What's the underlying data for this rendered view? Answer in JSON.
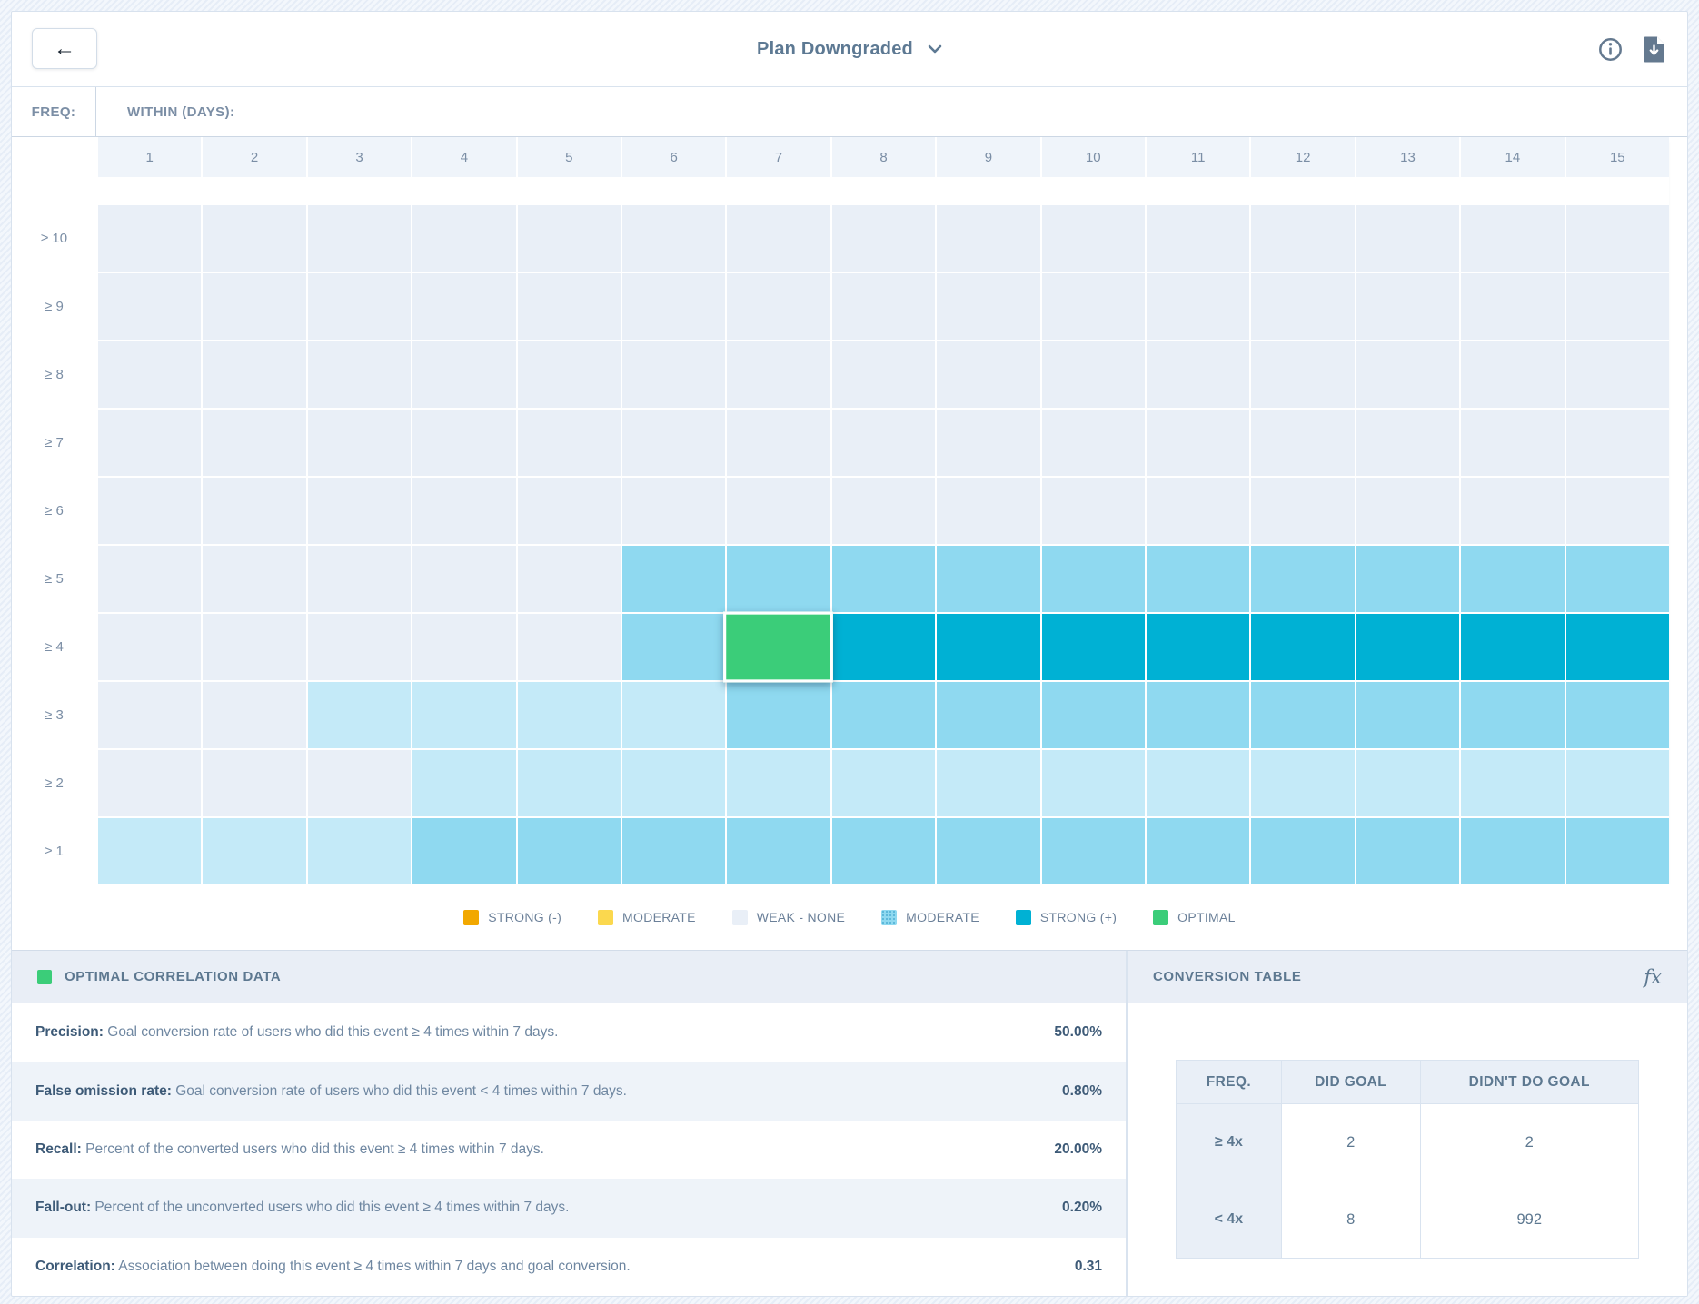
{
  "header": {
    "title": "Plan Downgraded",
    "back_label": "←"
  },
  "matrix": {
    "freq_label": "FREQ:",
    "within_label": "WITHIN (DAYS):",
    "columns": [
      "1",
      "2",
      "3",
      "4",
      "5",
      "6",
      "7",
      "8",
      "9",
      "10",
      "11",
      "12",
      "13",
      "14",
      "15"
    ],
    "cell_types": {
      "w": "weak-none",
      "l": "light-moderate",
      "m": "moderate",
      "s": "strong-positive",
      "o": "optimal"
    },
    "rows": [
      {
        "label": "≥ 10",
        "cells": [
          "w",
          "w",
          "w",
          "w",
          "w",
          "w",
          "w",
          "w",
          "w",
          "w",
          "w",
          "w",
          "w",
          "w",
          "w"
        ]
      },
      {
        "label": "≥ 9",
        "cells": [
          "w",
          "w",
          "w",
          "w",
          "w",
          "w",
          "w",
          "w",
          "w",
          "w",
          "w",
          "w",
          "w",
          "w",
          "w"
        ]
      },
      {
        "label": "≥ 8",
        "cells": [
          "w",
          "w",
          "w",
          "w",
          "w",
          "w",
          "w",
          "w",
          "w",
          "w",
          "w",
          "w",
          "w",
          "w",
          "w"
        ]
      },
      {
        "label": "≥ 7",
        "cells": [
          "w",
          "w",
          "w",
          "w",
          "w",
          "w",
          "w",
          "w",
          "w",
          "w",
          "w",
          "w",
          "w",
          "w",
          "w"
        ]
      },
      {
        "label": "≥ 6",
        "cells": [
          "w",
          "w",
          "w",
          "w",
          "w",
          "w",
          "w",
          "w",
          "w",
          "w",
          "w",
          "w",
          "w",
          "w",
          "w"
        ]
      },
      {
        "label": "≥ 5",
        "cells": [
          "w",
          "w",
          "w",
          "w",
          "w",
          "m",
          "m",
          "m",
          "m",
          "m",
          "m",
          "m",
          "m",
          "m",
          "m"
        ]
      },
      {
        "label": "≥ 4",
        "cells": [
          "w",
          "w",
          "w",
          "w",
          "w",
          "m",
          "o",
          "s",
          "s",
          "s",
          "s",
          "s",
          "s",
          "s",
          "s"
        ]
      },
      {
        "label": "≥ 3",
        "cells": [
          "w",
          "w",
          "l",
          "l",
          "l",
          "l",
          "m",
          "m",
          "m",
          "m",
          "m",
          "m",
          "m",
          "m",
          "m"
        ]
      },
      {
        "label": "≥ 2",
        "cells": [
          "w",
          "w",
          "w",
          "l",
          "l",
          "l",
          "l",
          "l",
          "l",
          "l",
          "l",
          "l",
          "l",
          "l",
          "l"
        ]
      },
      {
        "label": "≥ 1",
        "cells": [
          "l",
          "l",
          "l",
          "m",
          "m",
          "m",
          "m",
          "m",
          "m",
          "m",
          "m",
          "m",
          "m",
          "m",
          "m"
        ]
      }
    ]
  },
  "legend": {
    "items": [
      {
        "label": "STRONG (-)",
        "swatch": "strong-neg"
      },
      {
        "label": "MODERATE",
        "swatch": "moderate-neg"
      },
      {
        "label": "WEAK - NONE",
        "swatch": "weak"
      },
      {
        "label": "MODERATE",
        "swatch": "moderate-pos"
      },
      {
        "label": "STRONG (+)",
        "swatch": "strong-pos"
      },
      {
        "label": "OPTIMAL",
        "swatch": "optimal"
      }
    ]
  },
  "colors": {
    "strong_negative": "#F2A800",
    "moderate_negative": "#FBD84E",
    "weak_none": "#E9EFF7",
    "light_moderate": "#C4EAF8",
    "moderate_positive": "#8FD9F0",
    "strong_positive": "#00B1D4",
    "optimal": "#3BCD79"
  },
  "optimal_panel": {
    "title": "OPTIMAL CORRELATION DATA",
    "metrics": [
      {
        "name": "Precision:",
        "description": " Goal conversion rate of users who did this event ≥ 4 times within 7 days.",
        "value": "50.00%"
      },
      {
        "name": "False omission rate:",
        "description": " Goal conversion rate of users who did this event < 4 times within 7 days.",
        "value": "0.80%"
      },
      {
        "name": "Recall:",
        "description": " Percent of the converted users who did this event ≥ 4 times within 7 days.",
        "value": "20.00%"
      },
      {
        "name": "Fall-out:",
        "description": " Percent of the unconverted users who did this event ≥ 4 times within 7 days.",
        "value": "0.20%"
      },
      {
        "name": "Correlation:",
        "description": " Association between doing this event ≥ 4 times within 7 days and goal conversion.",
        "value": "0.31"
      }
    ]
  },
  "conversion_panel": {
    "title": "CONVERSION TABLE",
    "fx_label": "fx",
    "headers": [
      "FREQ.",
      "DID GOAL",
      "DIDN'T DO GOAL"
    ],
    "rows": [
      {
        "freq": "≥ 4x",
        "did": "2",
        "didnt": "2"
      },
      {
        "freq": "< 4x",
        "did": "8",
        "didnt": "992"
      }
    ]
  }
}
